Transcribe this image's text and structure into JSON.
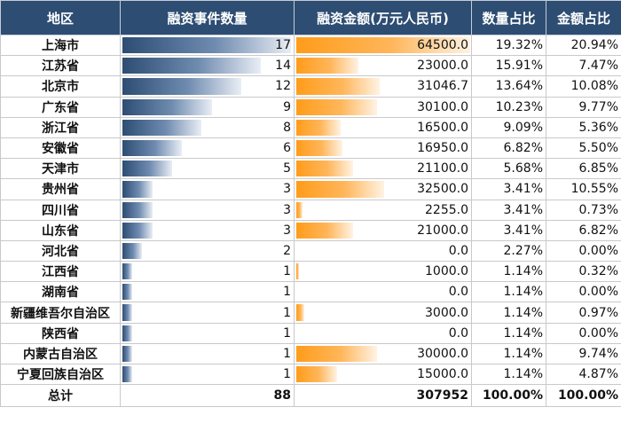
{
  "headers": {
    "region": "地区",
    "count": "融资事件数量",
    "amount": "融资金额(万元人民币)",
    "count_share": "数量占比",
    "amount_share": "金额占比"
  },
  "colors": {
    "header_bg": "#2d4d73",
    "count_bar": "#2d4d73",
    "amount_bar": "#ff9c1a"
  },
  "scale": {
    "count_max": 17,
    "amount_max": 64500
  },
  "rows": [
    {
      "region": "上海市",
      "count": "17",
      "amount": "64500.0",
      "count_share": "19.32%",
      "amount_share": "20.94%",
      "c": 17,
      "a": 64500
    },
    {
      "region": "江苏省",
      "count": "14",
      "amount": "23000.0",
      "count_share": "15.91%",
      "amount_share": "7.47%",
      "c": 14,
      "a": 23000
    },
    {
      "region": "北京市",
      "count": "12",
      "amount": "31046.7",
      "count_share": "13.64%",
      "amount_share": "10.08%",
      "c": 12,
      "a": 31046.7
    },
    {
      "region": "广东省",
      "count": "9",
      "amount": "30100.0",
      "count_share": "10.23%",
      "amount_share": "9.77%",
      "c": 9,
      "a": 30100
    },
    {
      "region": "浙江省",
      "count": "8",
      "amount": "16500.0",
      "count_share": "9.09%",
      "amount_share": "5.36%",
      "c": 8,
      "a": 16500
    },
    {
      "region": "安徽省",
      "count": "6",
      "amount": "16950.0",
      "count_share": "6.82%",
      "amount_share": "5.50%",
      "c": 6,
      "a": 16950
    },
    {
      "region": "天津市",
      "count": "5",
      "amount": "21100.0",
      "count_share": "5.68%",
      "amount_share": "6.85%",
      "c": 5,
      "a": 21100
    },
    {
      "region": "贵州省",
      "count": "3",
      "amount": "32500.0",
      "count_share": "3.41%",
      "amount_share": "10.55%",
      "c": 3,
      "a": 32500
    },
    {
      "region": "四川省",
      "count": "3",
      "amount": "2255.0",
      "count_share": "3.41%",
      "amount_share": "0.73%",
      "c": 3,
      "a": 2255
    },
    {
      "region": "山东省",
      "count": "3",
      "amount": "21000.0",
      "count_share": "3.41%",
      "amount_share": "6.82%",
      "c": 3,
      "a": 21000
    },
    {
      "region": "河北省",
      "count": "2",
      "amount": "0.0",
      "count_share": "2.27%",
      "amount_share": "0.00%",
      "c": 2,
      "a": 0
    },
    {
      "region": "江西省",
      "count": "1",
      "amount": "1000.0",
      "count_share": "1.14%",
      "amount_share": "0.32%",
      "c": 1,
      "a": 1000
    },
    {
      "region": "湖南省",
      "count": "1",
      "amount": "0.0",
      "count_share": "1.14%",
      "amount_share": "0.00%",
      "c": 1,
      "a": 0
    },
    {
      "region": "新疆维吾尔自治区",
      "count": "1",
      "amount": "3000.0",
      "count_share": "1.14%",
      "amount_share": "0.97%",
      "c": 1,
      "a": 3000
    },
    {
      "region": "陕西省",
      "count": "1",
      "amount": "0.0",
      "count_share": "1.14%",
      "amount_share": "0.00%",
      "c": 1,
      "a": 0
    },
    {
      "region": "内蒙古自治区",
      "count": "1",
      "amount": "30000.0",
      "count_share": "1.14%",
      "amount_share": "9.74%",
      "c": 1,
      "a": 30000
    },
    {
      "region": "宁夏回族自治区",
      "count": "1",
      "amount": "15000.0",
      "count_share": "1.14%",
      "amount_share": "4.87%",
      "c": 1,
      "a": 15000
    }
  ],
  "total": {
    "label": "总计",
    "count": "88",
    "amount": "307952",
    "count_share": "100.00%",
    "amount_share": "100.00%"
  }
}
